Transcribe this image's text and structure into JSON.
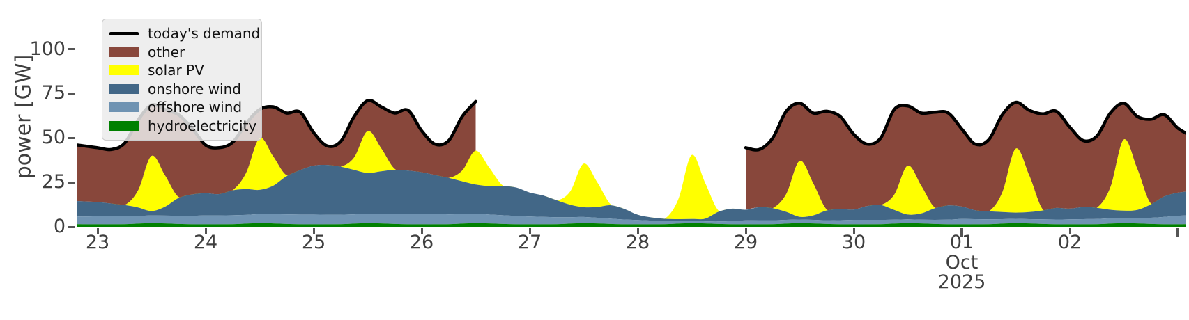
{
  "figure": {
    "background": "#ffffff",
    "axis_text_color": "#3f3f3f",
    "tick_mark_color": "#555555"
  },
  "legend": {
    "items": [
      {
        "label": "today's demand",
        "type": "line",
        "color": "#000000"
      },
      {
        "label": "other",
        "type": "patch",
        "color": "#88473B"
      },
      {
        "label": "solar PV",
        "type": "patch",
        "color": "#FFFF00"
      },
      {
        "label": "onshore wind",
        "type": "patch",
        "color": "#426787"
      },
      {
        "label": "offshore wind",
        "type": "patch",
        "color": "#6F93B2"
      },
      {
        "label": "hydroelectricity",
        "type": "patch",
        "color": "#008000"
      }
    ]
  },
  "chart_data": {
    "type": "area",
    "stacked": true,
    "title": "",
    "xlabel": "",
    "ylabel": "power [GW]",
    "ylim": [
      0,
      125
    ],
    "xlim": [
      22.8,
      33.08
    ],
    "grid": false,
    "legend_position": "upper left",
    "x_unit": "day number in Sep/Oct 2025 (23 = Sep 23, 31 = Oct 1, 32 = Oct 2); demand and 'other' have no data between day 26.5 and day 29.0",
    "x_start": 22.75,
    "x_step": 0.125,
    "n_points": 84,
    "y_ticks": [
      {
        "value": 0,
        "label": "0"
      },
      {
        "value": 25,
        "label": "25"
      },
      {
        "value": 50,
        "label": "50"
      },
      {
        "value": 75,
        "label": "75"
      },
      {
        "value": 100,
        "label": "100"
      }
    ],
    "x_ticks": [
      {
        "day": 23,
        "label": "23"
      },
      {
        "day": 24,
        "label": "24"
      },
      {
        "day": 25,
        "label": "25"
      },
      {
        "day": 26,
        "label": "26"
      },
      {
        "day": 27,
        "label": "27"
      },
      {
        "day": 28,
        "label": "28"
      },
      {
        "day": 29,
        "label": "29"
      },
      {
        "day": 30,
        "label": "30"
      },
      {
        "day": 31,
        "label": "01",
        "major": true,
        "sub": [
          "Oct",
          "2025"
        ]
      },
      {
        "day": 32,
        "label": "02"
      },
      {
        "day": 33,
        "label": "",
        "major": true
      }
    ],
    "series": [
      {
        "name": "hydroelectricity",
        "color": "#008000",
        "role": "stack",
        "values": [
          1.6,
          1.4,
          1.4,
          1.4,
          1.5,
          1.8,
          2.1,
          1.9,
          1.6,
          1.4,
          1.4,
          1.4,
          1.5,
          1.8,
          2.1,
          1.9,
          1.6,
          1.4,
          1.4,
          1.4,
          1.5,
          1.8,
          2.1,
          1.9,
          1.6,
          1.4,
          1.4,
          1.4,
          1.5,
          1.8,
          2.1,
          1.9,
          1.6,
          1.4,
          1.4,
          1.4,
          1.5,
          1.8,
          2.1,
          1.9,
          1.6,
          1.4,
          1.4,
          1.4,
          1.5,
          1.8,
          2.1,
          1.9,
          1.6,
          1.4,
          1.4,
          1.4,
          1.5,
          1.8,
          2.1,
          1.9,
          1.6,
          1.4,
          1.4,
          1.4,
          1.5,
          1.8,
          2.1,
          1.9,
          1.6,
          1.4,
          1.4,
          1.4,
          1.5,
          1.8,
          2.1,
          1.9,
          1.6,
          1.4,
          1.4,
          1.4,
          1.5,
          1.8,
          2.1,
          1.9,
          1.6,
          1.4,
          1.4,
          1.5
        ]
      },
      {
        "name": "offshore wind",
        "color": "#6F93B2",
        "role": "stack",
        "values": [
          4.4,
          4.4,
          4.5,
          4.5,
          4.4,
          4.3,
          4.3,
          4.4,
          4.6,
          4.8,
          5.0,
          5.0,
          5.0,
          4.9,
          5.0,
          5.2,
          5.4,
          5.5,
          5.5,
          5.4,
          5.3,
          5.2,
          5.2,
          5.3,
          5.5,
          5.7,
          5.8,
          5.7,
          5.5,
          5.3,
          5.2,
          5.0,
          4.9,
          4.7,
          4.4,
          4.2,
          3.9,
          3.6,
          3.4,
          3.2,
          3.0,
          2.7,
          2.4,
          2.1,
          1.8,
          1.5,
          1.3,
          1.2,
          1.4,
          1.8,
          2.2,
          2.3,
          2.2,
          2.1,
          2.0,
          2.0,
          2.1,
          2.3,
          2.5,
          2.5,
          2.4,
          2.2,
          2.1,
          2.1,
          2.3,
          2.6,
          3.0,
          2.9,
          2.7,
          2.5,
          2.4,
          2.4,
          2.6,
          2.7,
          2.8,
          2.9,
          2.9,
          3.0,
          3.0,
          3.1,
          3.5,
          4.2,
          4.8,
          5.0
        ]
      },
      {
        "name": "onshore wind",
        "color": "#426787",
        "role": "stack",
        "values": [
          8.6,
          8.5,
          8.0,
          7.2,
          6.3,
          4.8,
          2.5,
          5.0,
          10.0,
          12.0,
          12.5,
          12.0,
          14.0,
          14.5,
          13.7,
          16.0,
          21.5,
          25.0,
          27.5,
          28.0,
          27.0,
          25.0,
          23.0,
          24.0,
          25.0,
          24.5,
          23.5,
          22.0,
          20.5,
          18.5,
          16.5,
          16.0,
          16.5,
          16.0,
          13.5,
          12.0,
          9.5,
          7.0,
          5.5,
          6.0,
          7.5,
          6.0,
          3.0,
          1.8,
          1.2,
          1.0,
          1.0,
          1.5,
          5.5,
          7.0,
          6.0,
          7.3,
          6.8,
          4.5,
          1.5,
          2.5,
          5.5,
          6.3,
          5.8,
          7.8,
          8.3,
          5.5,
          2.7,
          3.5,
          6.5,
          8.0,
          7.0,
          5.0,
          4.5,
          4.0,
          3.5,
          4.0,
          5.0,
          6.5,
          6.0,
          6.8,
          6.3,
          4.8,
          4.0,
          4.5,
          7.5,
          11.5,
          13.0,
          13.5
        ]
      },
      {
        "name": "solar PV",
        "color": "#FFFF00",
        "role": "stack",
        "values": [
          0,
          0,
          0,
          0,
          0,
          9.5,
          31,
          17.5,
          0.5,
          0,
          0,
          0,
          0,
          9,
          29,
          16.5,
          0.5,
          0,
          0,
          0,
          0,
          7,
          23.5,
          13,
          0.5,
          0,
          0,
          0,
          0,
          6,
          19,
          10.5,
          0.3,
          0,
          0,
          0,
          0,
          7.5,
          24.5,
          14,
          0.5,
          0,
          0,
          0,
          0,
          11,
          36,
          20,
          0.5,
          0,
          0,
          0,
          0,
          10,
          31.5,
          18,
          0.5,
          0,
          0,
          0,
          0,
          8.5,
          27.5,
          15.5,
          0.5,
          0,
          0,
          0,
          0,
          11,
          36,
          20.5,
          0.5,
          0,
          0,
          0,
          0,
          12.5,
          40,
          23,
          0.5,
          0,
          0,
          0
        ]
      },
      {
        "name": "other",
        "color": "#88473B",
        "role": "stack-top-fill",
        "values_rule": "demand minus (hydroelectricity + offshore wind + onshore wind + solar PV); zero/absent where demand is null (day 26.5 to 29.0)"
      },
      {
        "name": "today's demand",
        "color": "#000000",
        "role": "line",
        "values": [
          46.5,
          45.5,
          44.5,
          43.5,
          47,
          60,
          68.5,
          66,
          63,
          55.5,
          46,
          44.5,
          47.5,
          58,
          66,
          67.5,
          64,
          64.5,
          53,
          45.5,
          48,
          62,
          71,
          67.5,
          64,
          65.5,
          54,
          46.5,
          48.5,
          62,
          70.5,
          null,
          null,
          null,
          null,
          null,
          null,
          null,
          null,
          null,
          null,
          null,
          null,
          null,
          null,
          null,
          null,
          null,
          null,
          null,
          44.5,
          43.5,
          50,
          65,
          69.5,
          64,
          65,
          62,
          52,
          46.5,
          50,
          66,
          68,
          64,
          64.5,
          64,
          55,
          46.5,
          49,
          63,
          70,
          65.5,
          63.5,
          65,
          56,
          48.5,
          51,
          64,
          69.5,
          62,
          60.5,
          63,
          55.5,
          51
        ]
      }
    ]
  }
}
